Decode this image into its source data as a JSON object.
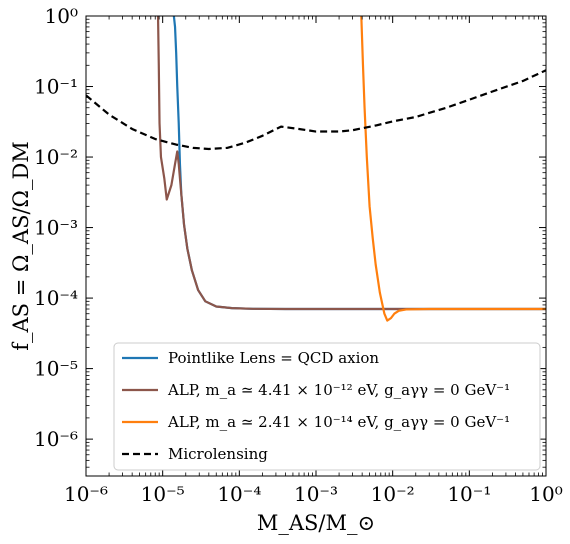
{
  "chart_data": {
    "type": "line",
    "title": "",
    "xlabel": "M_AS/M_⊙",
    "ylabel": "f_AS = Ω_AS/Ω_DM",
    "xscale": "log",
    "yscale": "log",
    "xlim": [
      1e-06,
      1
    ],
    "ylim": [
      3e-07,
      1
    ],
    "x_ticks": [
      {
        "value": 1e-06,
        "label": "10⁻⁶"
      },
      {
        "value": 1e-05,
        "label": "10⁻⁵"
      },
      {
        "value": 0.0001,
        "label": "10⁻⁴"
      },
      {
        "value": 0.001,
        "label": "10⁻³"
      },
      {
        "value": 0.01,
        "label": "10⁻²"
      },
      {
        "value": 0.1,
        "label": "10⁻¹"
      },
      {
        "value": 1,
        "label": "10⁰"
      }
    ],
    "y_ticks": [
      {
        "value": 1e-06,
        "label": "10⁻⁶"
      },
      {
        "value": 1e-05,
        "label": "10⁻⁵"
      },
      {
        "value": 0.0001,
        "label": "10⁻⁴"
      },
      {
        "value": 0.001,
        "label": "10⁻³"
      },
      {
        "value": 0.01,
        "label": "10⁻²"
      },
      {
        "value": 0.1,
        "label": "10⁻¹"
      },
      {
        "value": 1,
        "label": "10⁰"
      }
    ],
    "grid": false,
    "legend_position": "bottom-right",
    "series": [
      {
        "name": "Pointlike Lens = QCD axion",
        "color": "#1f77b4",
        "dash": "solid",
        "points": [
          [
            1.4e-05,
            1.0
          ],
          [
            1.45e-05,
            0.7
          ],
          [
            1.5e-05,
            0.3
          ],
          [
            1.55e-05,
            0.1
          ],
          [
            1.62e-05,
            0.03
          ],
          [
            1.68e-05,
            0.008
          ],
          [
            1.75e-05,
            0.003
          ],
          [
            1.9e-05,
            0.0011
          ],
          [
            2.1e-05,
            0.0005
          ],
          [
            2.4e-05,
            0.00025
          ],
          [
            2.9e-05,
            0.00013
          ],
          [
            3.6e-05,
            9e-05
          ],
          [
            5e-05,
            7.6e-05
          ],
          [
            8e-05,
            7.2e-05
          ],
          [
            0.00015,
            7.05e-05
          ],
          [
            0.0004,
            7e-05
          ],
          [
            0.001,
            7e-05
          ],
          [
            0.003,
            7e-05
          ],
          [
            0.01,
            7e-05
          ],
          [
            0.05,
            7e-05
          ],
          [
            0.2,
            7e-05
          ],
          [
            1.0,
            7e-05
          ]
        ]
      },
      {
        "name": "ALP, m_a ≃ 4.41 × 10⁻¹² eV, g_aγγ = 0 GeV⁻¹",
        "color": "#8c564b",
        "dash": "solid",
        "points": [
          [
            8.7e-06,
            1.0
          ],
          [
            8.9e-06,
            0.2
          ],
          [
            9.1e-06,
            0.03
          ],
          [
            9.5e-06,
            0.01
          ],
          [
            1.05e-05,
            0.005
          ],
          [
            1.13e-05,
            0.0025
          ],
          [
            1.3e-05,
            0.004
          ],
          [
            1.45e-05,
            0.008
          ],
          [
            1.55e-05,
            0.012
          ],
          [
            1.62e-05,
            0.008
          ],
          [
            1.68e-05,
            0.005
          ],
          [
            1.75e-05,
            0.003
          ],
          [
            1.9e-05,
            0.0011
          ],
          [
            2.1e-05,
            0.0005
          ],
          [
            2.4e-05,
            0.00025
          ],
          [
            2.9e-05,
            0.00013
          ],
          [
            3.6e-05,
            9e-05
          ],
          [
            5e-05,
            7.6e-05
          ],
          [
            8e-05,
            7.2e-05
          ],
          [
            0.00015,
            7.05e-05
          ],
          [
            0.0004,
            7e-05
          ],
          [
            0.001,
            7e-05
          ],
          [
            0.003,
            7e-05
          ],
          [
            0.01,
            7e-05
          ],
          [
            0.05,
            7e-05
          ],
          [
            0.2,
            7e-05
          ],
          [
            1.0,
            7e-05
          ]
        ]
      },
      {
        "name": "ALP, m_a ≃ 2.41 × 10⁻¹⁴ eV, g_aγγ = 0 GeV⁻¹",
        "color": "#ff7f0e",
        "dash": "solid",
        "points": [
          [
            0.0039,
            1.0
          ],
          [
            0.0041,
            0.2
          ],
          [
            0.0043,
            0.05
          ],
          [
            0.0046,
            0.01
          ],
          [
            0.005,
            0.002
          ],
          [
            0.0055,
            0.0007
          ],
          [
            0.006,
            0.0003
          ],
          [
            0.0068,
            0.00012
          ],
          [
            0.0078,
            6e-05
          ],
          [
            0.0085,
            4.8e-05
          ],
          [
            0.0095,
            5.2e-05
          ],
          [
            0.0105,
            6e-05
          ],
          [
            0.012,
            6.6e-05
          ],
          [
            0.015,
            6.9e-05
          ],
          [
            0.03,
            7e-05
          ],
          [
            0.1,
            7e-05
          ],
          [
            0.3,
            7e-05
          ],
          [
            1.0,
            7e-05
          ]
        ]
      },
      {
        "name": "Microlensing",
        "color": "#000000",
        "dash": "dashed",
        "points": [
          [
            1e-06,
            0.075
          ],
          [
            2e-06,
            0.04
          ],
          [
            4e-06,
            0.025
          ],
          [
            8e-06,
            0.018
          ],
          [
            1.5e-05,
            0.015
          ],
          [
            2.5e-05,
            0.0135
          ],
          [
            4e-05,
            0.013
          ],
          [
            7e-05,
            0.0135
          ],
          [
            0.00012,
            0.016
          ],
          [
            0.0002,
            0.02
          ],
          [
            0.00035,
            0.027
          ],
          [
            0.0006,
            0.025
          ],
          [
            0.001,
            0.023
          ],
          [
            0.002,
            0.023
          ],
          [
            0.003,
            0.024
          ],
          [
            0.006,
            0.028
          ],
          [
            0.01,
            0.032
          ],
          [
            0.02,
            0.037
          ],
          [
            0.05,
            0.05
          ],
          [
            0.1,
            0.065
          ],
          [
            0.2,
            0.085
          ],
          [
            0.5,
            0.12
          ],
          [
            1.0,
            0.17
          ]
        ]
      }
    ]
  }
}
